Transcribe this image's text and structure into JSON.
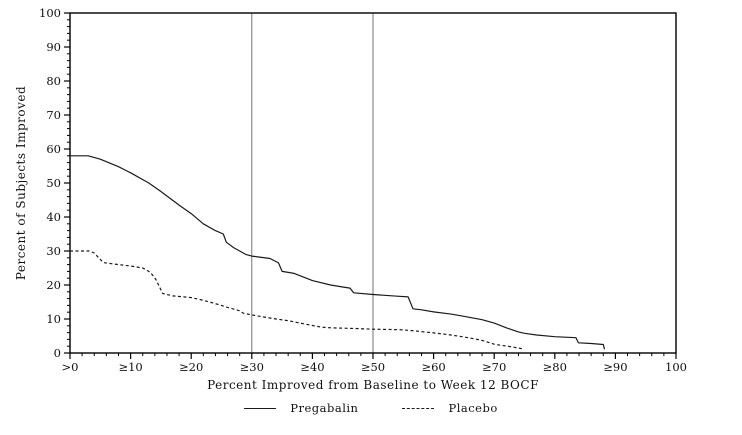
{
  "chart_data": {
    "type": "line",
    "title": "",
    "xlabel": "Percent Improved from Baseline to Week 12 BOCF",
    "ylabel": "Percent of Subjects Improved",
    "xlim": [
      0,
      100
    ],
    "ylim": [
      0,
      100
    ],
    "grid": false,
    "legend_position": "bottom-center",
    "x_tick_values": [
      0,
      10,
      20,
      30,
      40,
      50,
      60,
      70,
      80,
      90,
      100
    ],
    "x_tick_labels": [
      ">0",
      "≥10",
      "≥20",
      "≥30",
      "≥40",
      "≥50",
      "≥60",
      "≥70",
      "≥80",
      "≥90",
      "100"
    ],
    "y_tick_values": [
      0,
      10,
      20,
      30,
      40,
      50,
      60,
      70,
      80,
      90,
      100
    ],
    "y_tick_labels": [
      "0",
      "10",
      "20",
      "30",
      "40",
      "50",
      "60",
      "70",
      "80",
      "90",
      "100"
    ],
    "minor_tick_step": 2,
    "reference_lines_x": [
      30,
      50
    ],
    "series": [
      {
        "name": "Pregabalin",
        "style": "solid",
        "color": "#1a1a1a",
        "points": [
          [
            0,
            58
          ],
          [
            3,
            58
          ],
          [
            5,
            57
          ],
          [
            8,
            54.8
          ],
          [
            10,
            53
          ],
          [
            13,
            50
          ],
          [
            15,
            47.5
          ],
          [
            18,
            43.5
          ],
          [
            20,
            41
          ],
          [
            22,
            38
          ],
          [
            24,
            36
          ],
          [
            25.3,
            35
          ],
          [
            25.8,
            32.6
          ],
          [
            27,
            31
          ],
          [
            28,
            30
          ],
          [
            29,
            29
          ],
          [
            30,
            28.5
          ],
          [
            33,
            27.8
          ],
          [
            34.4,
            26.5
          ],
          [
            35,
            24
          ],
          [
            37,
            23.4
          ],
          [
            40,
            21.3
          ],
          [
            43,
            20
          ],
          [
            45,
            19.4
          ],
          [
            46.2,
            19.1
          ],
          [
            46.8,
            17.7
          ],
          [
            50,
            17.2
          ],
          [
            54,
            16.7
          ],
          [
            55.8,
            16.5
          ],
          [
            56.6,
            13
          ],
          [
            58,
            12.7
          ],
          [
            60,
            12.1
          ],
          [
            63,
            11.4
          ],
          [
            65,
            10.8
          ],
          [
            68,
            9.8
          ],
          [
            70,
            8.8
          ],
          [
            72,
            7.4
          ],
          [
            74,
            6.2
          ],
          [
            75,
            5.8
          ],
          [
            77,
            5.3
          ],
          [
            80,
            4.8
          ],
          [
            83.5,
            4.5
          ],
          [
            83.9,
            3
          ],
          [
            86,
            2.8
          ],
          [
            88,
            2.5
          ],
          [
            88.2,
            1.1
          ]
        ]
      },
      {
        "name": "Placebo",
        "style": "dashed",
        "color": "#1a1a1a",
        "points": [
          [
            0,
            30
          ],
          [
            3.2,
            30
          ],
          [
            4,
            29.4
          ],
          [
            5.5,
            26.6
          ],
          [
            8,
            26
          ],
          [
            10,
            25.6
          ],
          [
            12,
            25
          ],
          [
            13,
            24
          ],
          [
            13.6,
            23
          ],
          [
            14.2,
            21.5
          ],
          [
            15.3,
            17.5
          ],
          [
            17,
            16.8
          ],
          [
            20,
            16.3
          ],
          [
            22,
            15.5
          ],
          [
            23,
            15
          ],
          [
            25,
            14
          ],
          [
            26,
            13.4
          ],
          [
            28,
            12.4
          ],
          [
            28.6,
            11.7
          ],
          [
            30,
            11.2
          ],
          [
            32,
            10.6
          ],
          [
            34,
            10
          ],
          [
            36,
            9.5
          ],
          [
            38,
            8.8
          ],
          [
            40,
            8.1
          ],
          [
            41.5,
            7.6
          ],
          [
            43,
            7.4
          ],
          [
            47,
            7.2
          ],
          [
            50,
            7
          ],
          [
            53,
            6.9
          ],
          [
            55,
            6.8
          ],
          [
            57,
            6.5
          ],
          [
            58,
            6.3
          ],
          [
            60,
            5.9
          ],
          [
            62,
            5.5
          ],
          [
            64,
            5
          ],
          [
            66,
            4.4
          ],
          [
            68,
            3.7
          ],
          [
            70,
            2.6
          ],
          [
            71,
            2.3
          ],
          [
            72.5,
            1.9
          ],
          [
            74.8,
            1.2
          ]
        ]
      }
    ],
    "axis_color": "#000000",
    "reference_line_color": "#757575",
    "background_color": "#ffffff"
  }
}
